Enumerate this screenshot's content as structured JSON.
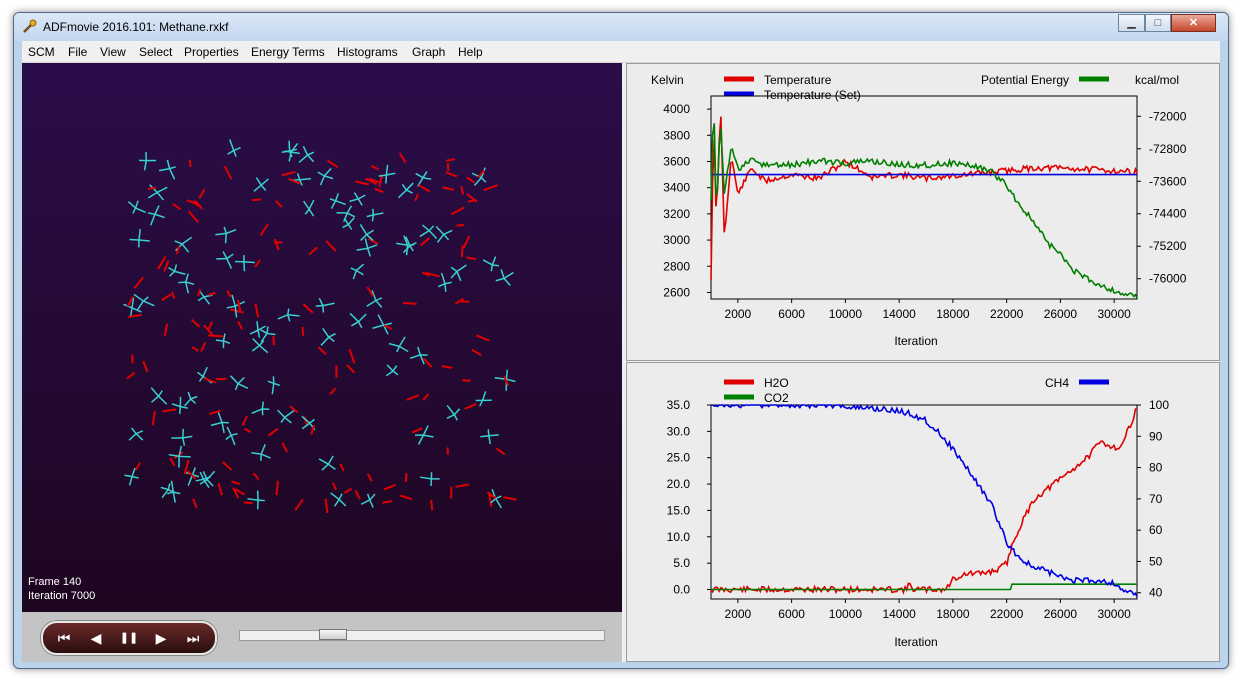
{
  "window": {
    "title": "ADFmovie 2016.101: Methane.rxkf",
    "minimize": "▁",
    "maximize": "□",
    "close": "✕"
  },
  "menu": [
    "SCM",
    "File",
    "View",
    "Select",
    "Properties",
    "Energy Terms",
    "Histograms",
    "Graph",
    "Help"
  ],
  "viewer": {
    "frame_label": "Frame 140",
    "iteration_label": "Iteration 7000"
  },
  "controls": {
    "first": "⏮",
    "prev": "◀",
    "pause": "❚❚",
    "next": "▶",
    "last": "⏭",
    "slider_fraction": 0.235
  },
  "colors": {
    "red": "#e00000",
    "green": "#007f00",
    "blue": "#0000e0",
    "cyan": "#38d0d0"
  },
  "chart_data": [
    {
      "type": "line",
      "x_label": "Iteration",
      "x_ticks": [
        2000,
        6000,
        10000,
        14000,
        18000,
        22000,
        26000,
        30000
      ],
      "xlim": [
        0,
        31700
      ],
      "left_unit": "Kelvin",
      "left_ticks": [
        4000,
        3800,
        3600,
        3400,
        3200,
        3000,
        2800,
        2600
      ],
      "ylim_left": [
        2550,
        4100
      ],
      "right_label": "Potential Energy",
      "right_unit": "kcal/mol",
      "right_ticks": [
        -72000,
        -72800,
        -73600,
        -74400,
        -75200,
        -76000
      ],
      "ylim_right": [
        -76500,
        -71500
      ],
      "legend_left": [
        "Temperature",
        "Temperature (Set)"
      ],
      "series": [
        {
          "name": "Temperature",
          "axis": "left",
          "color": "#e00000",
          "x": [
            0,
            200,
            400,
            700,
            1000,
            1500,
            2000,
            3000,
            4000,
            6000,
            8000,
            10000,
            12000,
            14000,
            16000,
            18000,
            20000,
            22000,
            24000,
            26000,
            28000,
            30000,
            31700
          ],
          "y": [
            2700,
            3950,
            3100,
            4050,
            3000,
            3650,
            3350,
            3550,
            3450,
            3500,
            3470,
            3600,
            3480,
            3500,
            3470,
            3490,
            3510,
            3530,
            3550,
            3550,
            3540,
            3530,
            3520
          ]
        },
        {
          "name": "Temperature (Set)",
          "axis": "left",
          "color": "#0000e0",
          "x": [
            0,
            31700
          ],
          "y": [
            3500,
            3500
          ]
        },
        {
          "name": "Potential Energy",
          "axis": "right",
          "color": "#007f00",
          "x": [
            0,
            200,
            400,
            700,
            1000,
            1500,
            2000,
            3000,
            4000,
            6000,
            8000,
            10000,
            12000,
            14000,
            16000,
            18000,
            20000,
            21000,
            22000,
            23000,
            24000,
            25000,
            26000,
            27000,
            28000,
            29000,
            30000,
            31700
          ],
          "y": [
            -74100,
            -71500,
            -74400,
            -72100,
            -74000,
            -72700,
            -73300,
            -73100,
            -73200,
            -73200,
            -73100,
            -73150,
            -73100,
            -73200,
            -73200,
            -73150,
            -73250,
            -73400,
            -73700,
            -74200,
            -74600,
            -75100,
            -75400,
            -75800,
            -76000,
            -76150,
            -76300,
            -76450
          ]
        }
      ]
    },
    {
      "type": "line",
      "x_label": "Iteration",
      "x_ticks": [
        2000,
        6000,
        10000,
        14000,
        18000,
        22000,
        26000,
        30000
      ],
      "xlim": [
        0,
        31700
      ],
      "left_ticks": [
        35.0,
        30.0,
        25.0,
        20.0,
        15.0,
        10.0,
        5.0,
        0.0
      ],
      "left_tick_labels": [
        "35.0",
        "30.0",
        "25.0",
        "20.0",
        "15.0",
        "10.0",
        "5.0",
        "0.0"
      ],
      "ylim_left": [
        -1.8,
        35.0
      ],
      "right_label": "CH4",
      "right_ticks": [
        100,
        90,
        80,
        70,
        60,
        50,
        40
      ],
      "ylim_right": [
        38,
        100
      ],
      "legend_left": [
        "H2O",
        "CO2"
      ],
      "series": [
        {
          "name": "H2O",
          "axis": "left",
          "color": "#e00000",
          "x": [
            0,
            14500,
            14800,
            15100,
            17500,
            18000,
            19000,
            20000,
            21000,
            21500,
            22000,
            22500,
            23000,
            24000,
            25000,
            26000,
            27000,
            28000,
            29000,
            30000,
            30500,
            31000,
            31700
          ],
          "y": [
            0,
            0,
            1,
            0,
            0,
            2,
            3,
            3,
            3.5,
            4,
            5,
            9,
            12,
            17,
            19,
            21,
            23,
            25,
            28,
            27,
            27,
            30,
            34.5
          ]
        },
        {
          "name": "CO2",
          "axis": "left",
          "color": "#007f00",
          "x": [
            0,
            22300,
            22300,
            31700
          ],
          "y": [
            0,
            0,
            1,
            1
          ]
        },
        {
          "name": "CH4",
          "axis": "right",
          "color": "#0000e0",
          "x": [
            0,
            10000,
            10500,
            12000,
            14000,
            15000,
            16000,
            17000,
            18000,
            19000,
            20000,
            21000,
            22000,
            23000,
            24000,
            25000,
            26000,
            27000,
            28000,
            29000,
            30000,
            30700,
            31200,
            31700
          ],
          "y": [
            100,
            100,
            99,
            99,
            98,
            97,
            95,
            91,
            86,
            80,
            74,
            67,
            56,
            51,
            48,
            47,
            45,
            44,
            44,
            44,
            43,
            41,
            40,
            39
          ]
        }
      ]
    }
  ]
}
